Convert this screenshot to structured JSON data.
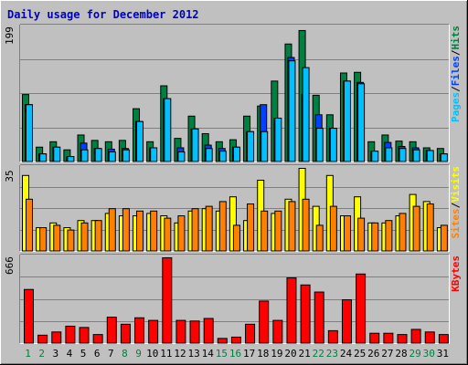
{
  "chart_data": {
    "type": "bar",
    "title": "Daily usage for December 2012",
    "categories": [
      "1",
      "2",
      "3",
      "4",
      "5",
      "6",
      "7",
      "8",
      "9",
      "10",
      "11",
      "12",
      "13",
      "14",
      "15",
      "16",
      "17",
      "18",
      "19",
      "20",
      "21",
      "22",
      "23",
      "24",
      "25",
      "26",
      "27",
      "28",
      "29",
      "30",
      "31"
    ],
    "weekend_days": [
      "1",
      "2",
      "8",
      "9",
      "15",
      "16",
      "22",
      "23",
      "29",
      "30"
    ],
    "colors": {
      "title": "#0000c0",
      "hits": "#008040",
      "files": "#0040ff",
      "pages": "#00c0ff",
      "visits": "#ffff00",
      "sites": "#ff8000",
      "kbytes": "#ff0000",
      "weekday_label": "#000000",
      "weekend_label": "#008040"
    },
    "panels": [
      {
        "id": "hits",
        "ymax_label": "199",
        "ylim": [
          0,
          199
        ],
        "legend": [
          {
            "text": "Hits",
            "color": "#008040"
          },
          {
            "text": "Files",
            "color": "#0040ff"
          },
          {
            "text": "Pages",
            "color": "#00c0ff"
          }
        ],
        "series": [
          {
            "name": "Hits",
            "values": [
              100,
              22,
              30,
              18,
              40,
              32,
              30,
              32,
              79,
              30,
              113,
              35,
              68,
              42,
              30,
              33,
              68,
              83,
              120,
              175,
              195,
              99,
              70,
              132,
              133,
              30,
              40,
              31,
              30,
              21,
              20
            ]
          },
          {
            "name": "Files",
            "values": [
              85,
              12,
              22,
              8,
              28,
              20,
              19,
              20,
              60,
              21,
              94,
              21,
              49,
              25,
              20,
              22,
              45,
              85,
              65,
              155,
              100,
              70,
              50,
              120,
              118,
              16,
              29,
              23,
              21,
              17,
              12
            ]
          },
          {
            "name": "Pages",
            "values": [
              85,
              12,
              22,
              8,
              18,
              20,
              15,
              18,
              60,
              21,
              94,
              15,
              49,
              20,
              16,
              22,
              45,
              45,
              65,
              150,
              140,
              50,
              50,
              120,
              116,
              16,
              21,
              20,
              18,
              17,
              12
            ]
          }
        ]
      },
      {
        "id": "visits",
        "ymax_label": "35",
        "ylim": [
          0,
          35
        ],
        "legend": [
          {
            "text": "Visits",
            "color": "#ffff00"
          },
          {
            "text": "Sites",
            "color": "#ff8000"
          }
        ],
        "series": [
          {
            "name": "Visits",
            "values": [
              32,
              10,
              12,
              10,
              13,
              13,
              16,
              15,
              15,
              16,
              15,
              12,
              17,
              18,
              17,
              23,
              13,
              30,
              16,
              22,
              35,
              19,
              32,
              15,
              23,
              12,
              12,
              15,
              24,
              21,
              10
            ]
          },
          {
            "name": "Sites",
            "values": [
              22,
              10,
              11,
              9,
              12,
              13,
              18,
              18,
              17,
              17,
              14,
              15,
              18,
              19,
              21,
              11,
              20,
              17,
              17,
              21,
              22,
              11,
              19,
              15,
              14,
              12,
              13,
              16,
              19,
              20,
              11
            ]
          }
        ]
      },
      {
        "id": "kbytes",
        "ymax_label": "666",
        "ylim": [
          0,
          666
        ],
        "legend": [
          {
            "text": "KBytes",
            "color": "#ff0000"
          }
        ],
        "series": [
          {
            "name": "KBytes",
            "values": [
              420,
              65,
              90,
              135,
              125,
              70,
              205,
              150,
              200,
              180,
              666,
              180,
              175,
              195,
              40,
              50,
              150,
              330,
              180,
              510,
              455,
              400,
              100,
              340,
              540,
              80,
              80,
              70,
              110,
              90,
              70
            ]
          }
        ]
      }
    ]
  }
}
